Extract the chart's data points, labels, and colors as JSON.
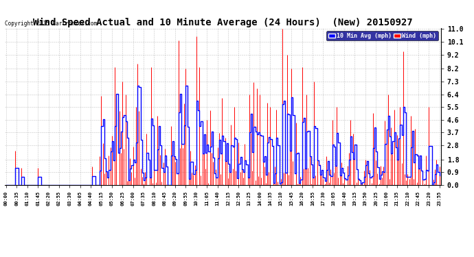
{
  "title": "Wind Speed Actual and 10 Minute Average (24 Hours)  (New) 20150927",
  "copyright": "Copyright 2015 Cartronics.com",
  "yticks": [
    0.0,
    0.9,
    1.8,
    2.8,
    3.7,
    4.6,
    5.5,
    6.4,
    7.3,
    8.2,
    9.2,
    10.1,
    11.0
  ],
  "ymin": 0.0,
  "ymax": 11.0,
  "legend_labels": [
    "10 Min Avg (mph)",
    "Wind (mph)"
  ],
  "legend_bg": "#00008B",
  "bg_color": "#ffffff",
  "plot_bg": "#f0f0f0",
  "grid_color": "#aaaaaa",
  "title_fontsize": 10,
  "wind_color": "#ff0000",
  "avg_color": "#0000ff",
  "tick_step": 7,
  "n_points": 288
}
